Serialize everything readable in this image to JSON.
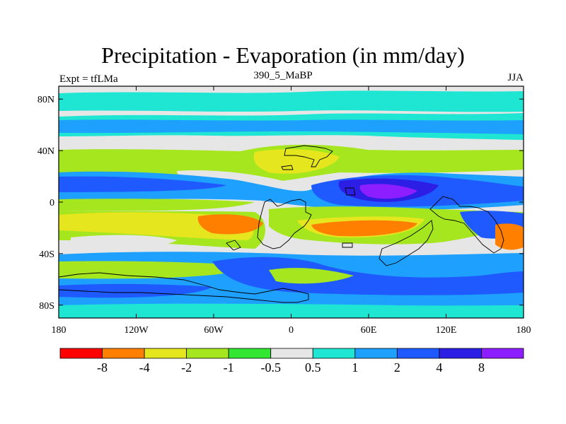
{
  "title": "Precipitation - Evaporation (in mm/day)",
  "subtitle_left": "Expt = tfLMa",
  "subtitle_center": "390_5_MaBP",
  "subtitle_right": "JJA",
  "map": {
    "x_ticks": [
      {
        "lon": -180,
        "label": "180"
      },
      {
        "lon": -120,
        "label": "120W"
      },
      {
        "lon": -60,
        "label": "60W"
      },
      {
        "lon": 0,
        "label": "0"
      },
      {
        "lon": 60,
        "label": "60E"
      },
      {
        "lon": 120,
        "label": "120E"
      },
      {
        "lon": 180,
        "label": "180"
      }
    ],
    "y_ticks": [
      {
        "lat": 80,
        "label": "80N"
      },
      {
        "lat": 40,
        "label": "40N"
      },
      {
        "lat": 0,
        "label": "0"
      },
      {
        "lat": -40,
        "label": "40S"
      },
      {
        "lat": -80,
        "label": "80S"
      }
    ],
    "lon_range": [
      -180,
      180
    ],
    "lat_range": [
      -90,
      90
    ]
  },
  "colorbar": {
    "colors": [
      "#ff0000",
      "#ff7f00",
      "#e6e61e",
      "#a5e61e",
      "#32e632",
      "#e6e6e6",
      "#1ee6d2",
      "#1ea0ff",
      "#1e5aff",
      "#2d1ee6",
      "#8c1eff"
    ],
    "labels": [
      "-8",
      "-4",
      "-2",
      "-1",
      "-0.5",
      "0.5",
      "1",
      "2",
      "4",
      "8"
    ]
  }
}
